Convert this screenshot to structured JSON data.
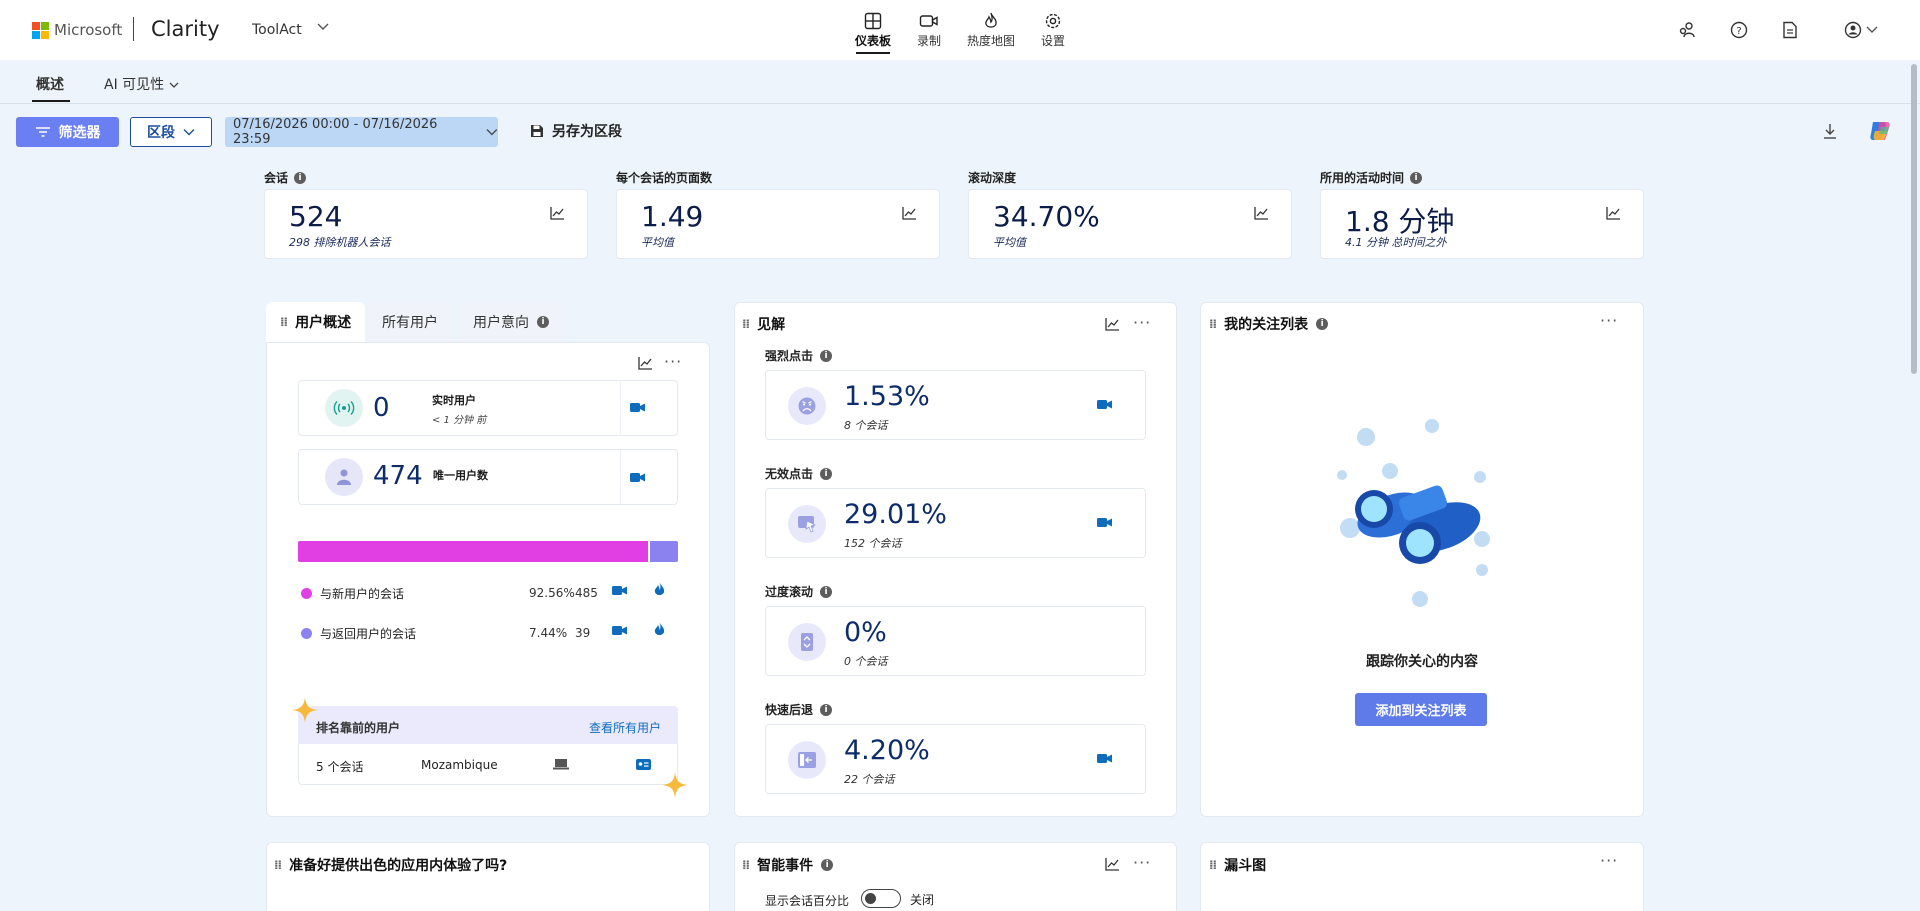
{
  "header": {
    "ms_text": "Microsoft",
    "brand": "Clarity",
    "project": "ToolAct",
    "nav": [
      {
        "label": "仪表板",
        "icon": "dashboard-icon"
      },
      {
        "label": "录制",
        "icon": "video-icon"
      },
      {
        "label": "热度地图",
        "icon": "flame-icon"
      },
      {
        "label": "设置",
        "icon": "gear-icon"
      }
    ],
    "right_icons": [
      "share-people-icon",
      "help-icon",
      "document-icon",
      "account-icon"
    ]
  },
  "subnav": {
    "tabs": [
      "概述",
      "AI 可见性"
    ]
  },
  "toolbar": {
    "filter_label": "筛选器",
    "segment_label": "区段",
    "date_range": "07/16/2026 00:00 - 07/16/2026 23:59",
    "save_segment_label": "另存为区段"
  },
  "metrics": [
    {
      "label": "会话",
      "value": "524",
      "sub": "298 排除机器人会话"
    },
    {
      "label": "每个会话的页面数",
      "value": "1.49",
      "sub": "平均值"
    },
    {
      "label": "滚动深度",
      "value": "34.70%",
      "sub": "平均值"
    },
    {
      "label": "所用的活动时间",
      "value": "1.8 分钟",
      "sub": "4.1 分钟 总时间之外"
    }
  ],
  "users_panel": {
    "tabs": [
      "用户概述",
      "所有用户",
      "用户意向"
    ],
    "live": {
      "value": "0",
      "label": "实时用户",
      "sub": "< 1 分钟 前"
    },
    "unique": {
      "value": "474",
      "label": "唯一用户数"
    },
    "split": {
      "new_fraction": 0.9256,
      "colors": {
        "new": "#e13ee3",
        "returning": "#8b82f0"
      }
    },
    "rows": [
      {
        "label": "与新用户的会话",
        "pct": "92.56%",
        "count": "485"
      },
      {
        "label": "与返回用户的会话",
        "pct": "7.44%",
        "count": "39"
      }
    ],
    "top_users": {
      "title": "排名靠前的用户",
      "link": "查看所有用户",
      "sessions": "5 个会话",
      "country": "Mozambique"
    }
  },
  "insights": {
    "title": "见解",
    "items": [
      {
        "label": "强烈点击",
        "value": "1.53%",
        "sub": "8 个会话",
        "icon": "angry-face-icon"
      },
      {
        "label": "无效点击",
        "value": "29.01%",
        "sub": "152 个会话",
        "icon": "dead-click-icon"
      },
      {
        "label": "过度滚动",
        "value": "0%",
        "sub": "0 个会话",
        "icon": "scroll-icon"
      },
      {
        "label": "快速后退",
        "value": "4.20%",
        "sub": "22 个会话",
        "icon": "back-icon"
      }
    ]
  },
  "watchlist": {
    "title": "我的关注列表",
    "empty_text": "跟踪你关心的内容",
    "button": "添加到关注列表"
  },
  "bottom": {
    "app_title": "准备好提供出色的应用内体验了吗?",
    "smart_events": "智能事件",
    "show_pct": "显示会话百分比",
    "toggle_state": "关闭",
    "funnel": "漏斗图"
  }
}
